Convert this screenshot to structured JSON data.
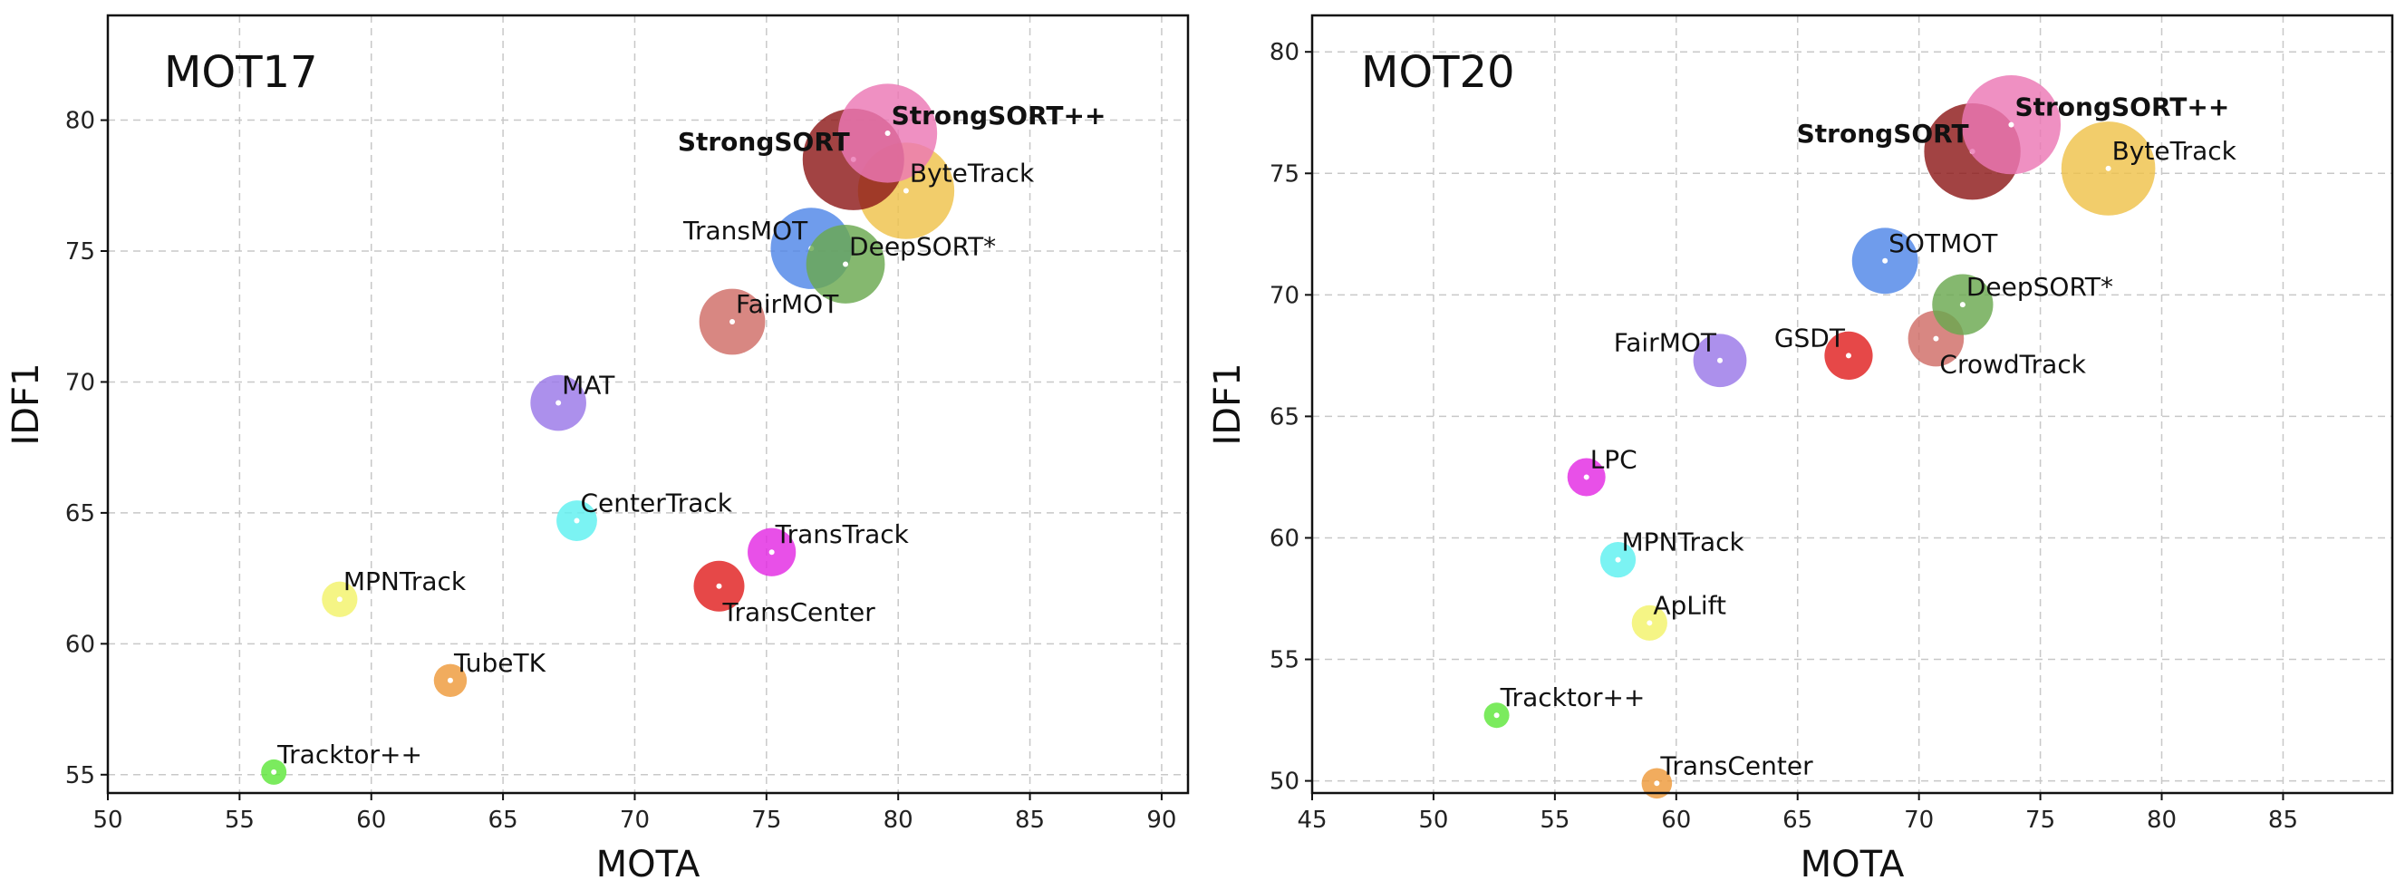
{
  "chart_data": [
    {
      "type": "scatter",
      "title": "MOT17",
      "xlabel": "MOTA",
      "ylabel": "IDF1",
      "xlim": [
        50,
        91
      ],
      "ylim": [
        54.3,
        84
      ],
      "xticks": [
        "50",
        "55",
        "60",
        "65",
        "70",
        "75",
        "80",
        "85",
        "90"
      ],
      "yticks": [
        "55",
        "60",
        "65",
        "70",
        "75",
        "80"
      ],
      "grid": true,
      "points": [
        {
          "name": "Tracktor++",
          "x": 56.3,
          "y": 55.1,
          "size": 0.5,
          "color": "#5ee63a",
          "bold": false,
          "label_pos": "top-right"
        },
        {
          "name": "TubeTK",
          "x": 63.0,
          "y": 58.6,
          "size": 0.65,
          "color": "#ee9a3a",
          "bold": false,
          "label_pos": "top-right"
        },
        {
          "name": "MPNTrack",
          "x": 58.8,
          "y": 61.7,
          "size": 0.7,
          "color": "#f3f36a",
          "bold": false,
          "label_pos": "top-right"
        },
        {
          "name": "CenterTrack",
          "x": 67.8,
          "y": 64.7,
          "size": 0.8,
          "color": "#5ef0f0",
          "bold": false,
          "label_pos": "top-right"
        },
        {
          "name": "MAT",
          "x": 67.1,
          "y": 69.2,
          "size": 1.1,
          "color": "#9a78e8",
          "bold": false,
          "label_pos": "top-right"
        },
        {
          "name": "TransTrack",
          "x": 75.2,
          "y": 63.5,
          "size": 0.95,
          "color": "#e32ae3",
          "bold": false,
          "label_pos": "top-right"
        },
        {
          "name": "TransCenter",
          "x": 73.2,
          "y": 62.2,
          "size": 1.0,
          "color": "#e02020",
          "bold": false,
          "label_pos": "bottom-right"
        },
        {
          "name": "FairMOT",
          "x": 73.7,
          "y": 72.3,
          "size": 1.3,
          "color": "#cf6c66",
          "bold": false,
          "label_pos": "top-right"
        },
        {
          "name": "TransMOT",
          "x": 76.7,
          "y": 75.1,
          "size": 1.6,
          "color": "#4f86e8",
          "bold": false,
          "label_pos": "top-left"
        },
        {
          "name": "DeepSORT*",
          "x": 78.0,
          "y": 74.5,
          "size": 1.55,
          "color": "#6aa84f",
          "bold": false,
          "label_pos": "top-right"
        },
        {
          "name": "ByteTrack",
          "x": 80.3,
          "y": 77.3,
          "size": 1.9,
          "color": "#efc24a",
          "bold": false,
          "label_pos": "top-right"
        },
        {
          "name": "StrongSORT",
          "x": 78.3,
          "y": 78.5,
          "size": 2.0,
          "color": "#8e1a1a",
          "bold": true,
          "label_pos": "top-left"
        },
        {
          "name": "StrongSORT++",
          "x": 79.6,
          "y": 79.5,
          "size": 1.95,
          "color": "#ec78b4",
          "bold": true,
          "label_pos": "top-right"
        }
      ]
    },
    {
      "type": "scatter",
      "title": "MOT20",
      "xlabel": "MOTA",
      "ylabel": "IDF1",
      "xlim": [
        45,
        89.5
      ],
      "ylim": [
        49.5,
        81.5
      ],
      "xticks": [
        "45",
        "50",
        "55",
        "60",
        "65",
        "70",
        "75",
        "80",
        "85"
      ],
      "yticks": [
        "50",
        "55",
        "60",
        "65",
        "70",
        "75",
        "80"
      ],
      "grid": true,
      "points": [
        {
          "name": "Tracktor++",
          "x": 52.6,
          "y": 52.7,
          "size": 0.5,
          "color": "#5ee63a",
          "bold": false,
          "label_pos": "top-right"
        },
        {
          "name": "TransCenter",
          "x": 59.2,
          "y": 49.9,
          "size": 0.6,
          "color": "#ee9a3a",
          "bold": false,
          "label_pos": "top-right"
        },
        {
          "name": "ApLift",
          "x": 58.9,
          "y": 56.5,
          "size": 0.7,
          "color": "#f3f36a",
          "bold": false,
          "label_pos": "top-right"
        },
        {
          "name": "MPNTrack",
          "x": 57.6,
          "y": 59.1,
          "size": 0.7,
          "color": "#5ef0f0",
          "bold": false,
          "label_pos": "top-right"
        },
        {
          "name": "LPC",
          "x": 56.3,
          "y": 62.5,
          "size": 0.75,
          "color": "#e32ae3",
          "bold": false,
          "label_pos": "top-right"
        },
        {
          "name": "FairMOT",
          "x": 61.8,
          "y": 67.3,
          "size": 1.05,
          "color": "#9a78e8",
          "bold": false,
          "label_pos": "top-left"
        },
        {
          "name": "GSDT",
          "x": 67.1,
          "y": 67.5,
          "size": 0.95,
          "color": "#e02020",
          "bold": false,
          "label_pos": "top-left"
        },
        {
          "name": "CrowdTrack",
          "x": 70.7,
          "y": 68.2,
          "size": 1.1,
          "color": "#cf6c66",
          "bold": false,
          "label_pos": "bottom-right"
        },
        {
          "name": "DeepSORT*",
          "x": 71.8,
          "y": 69.6,
          "size": 1.2,
          "color": "#6aa84f",
          "bold": false,
          "label_pos": "top-right"
        },
        {
          "name": "SOTMOT",
          "x": 68.6,
          "y": 71.4,
          "size": 1.3,
          "color": "#4f86e8",
          "bold": false,
          "label_pos": "top-right"
        },
        {
          "name": "ByteTrack",
          "x": 77.8,
          "y": 75.2,
          "size": 1.85,
          "color": "#efc24a",
          "bold": false,
          "label_pos": "top-right"
        },
        {
          "name": "StrongSORT",
          "x": 72.2,
          "y": 75.9,
          "size": 1.9,
          "color": "#8e1a1a",
          "bold": true,
          "label_pos": "top-left"
        },
        {
          "name": "StrongSORT++",
          "x": 73.8,
          "y": 77.0,
          "size": 1.95,
          "color": "#ec78b4",
          "bold": true,
          "label_pos": "top-right"
        }
      ]
    }
  ]
}
